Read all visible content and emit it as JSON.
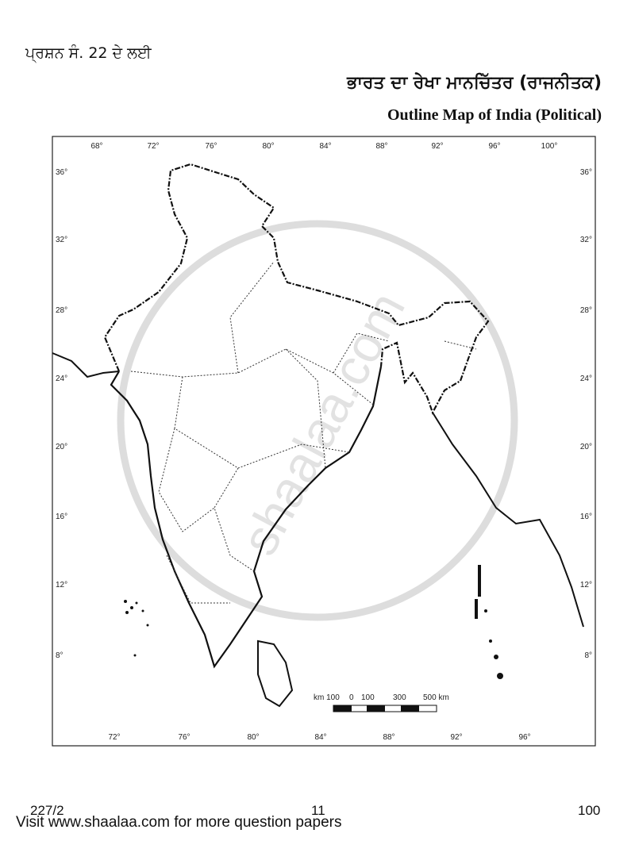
{
  "header": {
    "question_ref": "ਪ੍ਰਸ਼ਨ ਸੰ. 22 ਦੇ ਲਈ",
    "title_punjabi": "ਭਾਰਤ ਦਾ ਰੇਖਾ ਮਾਨਚਿੱਤਰ (ਰਾਜਨੀਤਕ)",
    "title_english": "Outline Map of India (Political)"
  },
  "map": {
    "top_longitudes": [
      "68°",
      "72°",
      "76°",
      "80°",
      "84°",
      "88°",
      "92°",
      "96°",
      "100°"
    ],
    "bottom_longitudes": [
      "72°",
      "76°",
      "80°",
      "84°",
      "88°",
      "92°",
      "96°"
    ],
    "latitudes": [
      "36°",
      "32°",
      "28°",
      "24°",
      "20°",
      "16°",
      "12°",
      "8°"
    ],
    "scale_labels": [
      "km 100",
      "0",
      "100",
      "300",
      "500 km"
    ],
    "watermark": "shaalaa.com"
  },
  "footer": {
    "code": "227/2",
    "page": "11",
    "marks": "100",
    "promo": "Visit www.shaalaa.com for more question papers"
  }
}
